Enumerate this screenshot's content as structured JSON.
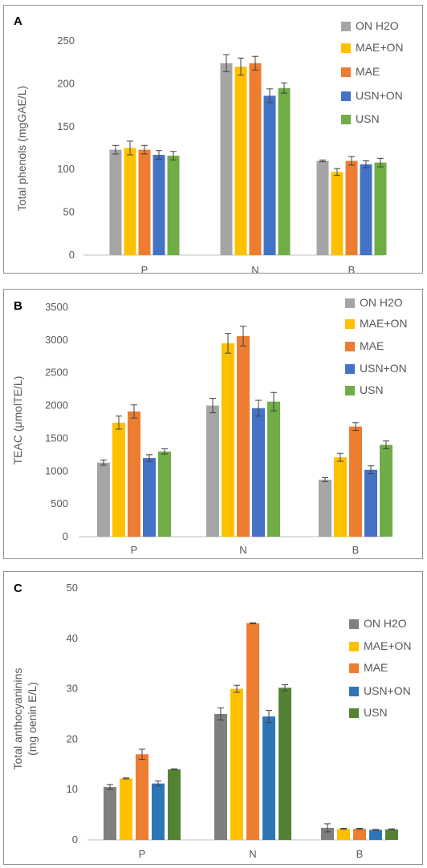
{
  "chart_data": [
    {
      "type": "bar",
      "panel_label": "A",
      "title": "",
      "xlabel": "",
      "ylabel": "Total phenols (mgGAE/L)",
      "ylim": [
        0,
        250
      ],
      "yticks": [
        0,
        50,
        100,
        150,
        200,
        250
      ],
      "categories": [
        "P",
        "N",
        "B"
      ],
      "grid": false,
      "legend_position": "right",
      "series": [
        {
          "name": "ON H2O",
          "color": "#a5a5a5",
          "values": [
            123,
            224,
            110
          ],
          "errors": [
            5,
            10,
            1
          ]
        },
        {
          "name": "MAE+ON",
          "color": "#ffc000",
          "values": [
            125,
            220,
            97
          ],
          "errors": [
            8,
            10,
            4
          ]
        },
        {
          "name": "MAE",
          "color": "#ed7d31",
          "values": [
            123,
            224,
            110
          ],
          "errors": [
            5,
            8,
            5
          ]
        },
        {
          "name": "USN+ON",
          "color": "#4472c4",
          "values": [
            117,
            186,
            106
          ],
          "errors": [
            5,
            8,
            4
          ]
        },
        {
          "name": "USN",
          "color": "#70ad47",
          "values": [
            116,
            195,
            108
          ],
          "errors": [
            5,
            6,
            5
          ]
        }
      ]
    },
    {
      "type": "bar",
      "panel_label": "B",
      "title": "",
      "xlabel": "",
      "ylabel": "TEAC (μmolTE/L)",
      "ylim": [
        0,
        3500
      ],
      "yticks": [
        0,
        500,
        1000,
        1500,
        2000,
        2500,
        3000,
        3500
      ],
      "categories": [
        "P",
        "N",
        "B"
      ],
      "grid": false,
      "legend_position": "right",
      "series": [
        {
          "name": "ON H2O",
          "color": "#a5a5a5",
          "values": [
            1130,
            2000,
            870
          ],
          "errors": [
            40,
            110,
            30
          ]
        },
        {
          "name": "MAE+ON",
          "color": "#ffc000",
          "values": [
            1740,
            2950,
            1210
          ],
          "errors": [
            100,
            150,
            60
          ]
        },
        {
          "name": "MAE",
          "color": "#ed7d31",
          "values": [
            1910,
            3060,
            1680
          ],
          "errors": [
            100,
            150,
            60
          ]
        },
        {
          "name": "USN+ON",
          "color": "#4472c4",
          "values": [
            1200,
            1960,
            1020
          ],
          "errors": [
            50,
            120,
            60
          ]
        },
        {
          "name": "USN",
          "color": "#70ad47",
          "values": [
            1300,
            2060,
            1400
          ],
          "errors": [
            40,
            140,
            60
          ]
        }
      ]
    },
    {
      "type": "bar",
      "panel_label": "C",
      "title": "",
      "xlabel": "",
      "ylabel_lines": [
        "Total anthocyaninins",
        "(mg oenin E/L)"
      ],
      "ylim": [
        0,
        50
      ],
      "yticks": [
        0,
        10,
        20,
        30,
        40,
        50
      ],
      "categories": [
        "P",
        "N",
        "B"
      ],
      "grid": false,
      "legend_position": "right",
      "series": [
        {
          "name": "ON H2O",
          "color": "#7f7f7f",
          "values": [
            10.5,
            25,
            2.4
          ],
          "errors": [
            0.5,
            1.2,
            0.8
          ]
        },
        {
          "name": "MAE+ON",
          "color": "#ffc000",
          "values": [
            12.2,
            30,
            2.2
          ],
          "errors": [
            0.1,
            0.7,
            0.1
          ]
        },
        {
          "name": "MAE",
          "color": "#ed7d31",
          "values": [
            17,
            43,
            2.2
          ],
          "errors": [
            1,
            0.1,
            0.1
          ]
        },
        {
          "name": "USN+ON",
          "color": "#2e75b6",
          "values": [
            11.2,
            24.5,
            2.0
          ],
          "errors": [
            0.5,
            1.2,
            0.1
          ]
        },
        {
          "name": "USN",
          "color": "#548235",
          "values": [
            14,
            30.2,
            2.1
          ],
          "errors": [
            0.1,
            0.6,
            0.1
          ]
        }
      ]
    }
  ]
}
